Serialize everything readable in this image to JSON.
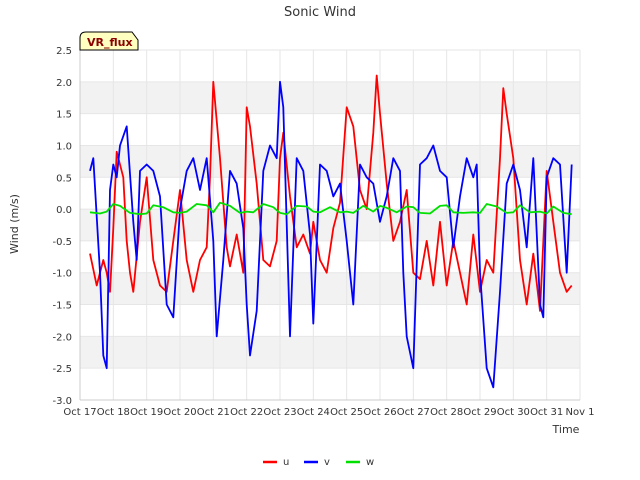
{
  "chart_data": {
    "type": "line",
    "title": "Sonic Wind",
    "badge": "VR_flux",
    "xlabel": "Time",
    "ylabel": "Wind (m/s)",
    "ylim": [
      -3.0,
      2.5
    ],
    "xlim": [
      0,
      15
    ],
    "y_ticks": [
      -3.0,
      -2.5,
      -2.0,
      -1.5,
      -1.0,
      -0.5,
      0.0,
      0.5,
      1.0,
      1.5,
      2.0,
      2.5
    ],
    "y_tick_labels": [
      "-3.0",
      "-2.5",
      "-2.0",
      "-1.5",
      "-1.0",
      "-0.5",
      "0.0",
      "0.5",
      "1.0",
      "1.5",
      "2.0",
      "2.5"
    ],
    "x_ticks": [
      0,
      1,
      2,
      3,
      4,
      5,
      6,
      7,
      8,
      9,
      10,
      11,
      12,
      13,
      14,
      15
    ],
    "x_tick_labels": [
      "Oct 17",
      "Oct 18",
      "Oct 19",
      "Oct 20",
      "Oct 21",
      "Oct 22",
      "Oct 23",
      "Oct 24",
      "Oct 25",
      "Oct 26",
      "Oct 27",
      "Oct 28",
      "Oct 29",
      "Oct 30",
      "Oct 31",
      "Nov 1"
    ],
    "grid": true,
    "legend_position": "bottom-center",
    "series": [
      {
        "name": "u",
        "color": "#ff0000",
        "x": [
          0.3,
          0.5,
          0.7,
          0.8,
          0.9,
          1.0,
          1.1,
          1.3,
          1.4,
          1.5,
          1.6,
          1.8,
          2.0,
          2.2,
          2.4,
          2.6,
          2.8,
          3.0,
          3.2,
          3.4,
          3.6,
          3.8,
          3.9,
          4.0,
          4.2,
          4.4,
          4.5,
          4.7,
          4.9,
          5.0,
          5.1,
          5.3,
          5.5,
          5.7,
          5.9,
          6.0,
          6.1,
          6.3,
          6.5,
          6.7,
          6.9,
          7.0,
          7.2,
          7.4,
          7.6,
          7.8,
          8.0,
          8.2,
          8.4,
          8.6,
          8.8,
          8.9,
          9.0,
          9.2,
          9.4,
          9.6,
          9.8,
          10.0,
          10.2,
          10.4,
          10.6,
          10.8,
          11.0,
          11.2,
          11.4,
          11.6,
          11.8,
          12.0,
          12.2,
          12.4,
          12.6,
          12.7,
          12.8,
          13.0,
          13.2,
          13.4,
          13.6,
          13.8,
          14.0,
          14.2,
          14.4,
          14.6,
          14.75
        ],
        "values": [
          -0.7,
          -1.2,
          -0.8,
          -1.0,
          -1.3,
          -0.3,
          0.9,
          0.5,
          -0.5,
          -1.0,
          -1.3,
          -0.2,
          0.5,
          -0.8,
          -1.2,
          -1.3,
          -0.5,
          0.3,
          -0.8,
          -1.3,
          -0.8,
          -0.6,
          0.5,
          2.0,
          0.8,
          -0.6,
          -0.9,
          -0.4,
          -1.0,
          1.6,
          1.3,
          0.4,
          -0.8,
          -0.9,
          -0.5,
          0.8,
          1.2,
          0.2,
          -0.6,
          -0.4,
          -0.7,
          -0.2,
          -0.8,
          -1.0,
          -0.3,
          0.1,
          1.6,
          1.3,
          0.3,
          0.0,
          1.2,
          2.1,
          1.5,
          0.4,
          -0.5,
          -0.2,
          0.3,
          -1.0,
          -1.1,
          -0.5,
          -1.2,
          -0.2,
          -1.2,
          -0.5,
          -1.0,
          -1.5,
          -0.4,
          -1.3,
          -0.8,
          -1.0,
          0.8,
          1.9,
          1.5,
          0.8,
          -0.8,
          -1.5,
          -0.7,
          -1.6,
          0.6,
          -0.2,
          -1.0,
          -1.3,
          -1.2
        ]
      },
      {
        "name": "v",
        "color": "#0000ff",
        "x": [
          0.3,
          0.4,
          0.6,
          0.7,
          0.8,
          0.9,
          1.0,
          1.1,
          1.2,
          1.4,
          1.6,
          1.7,
          1.8,
          2.0,
          2.2,
          2.4,
          2.6,
          2.8,
          3.0,
          3.2,
          3.4,
          3.6,
          3.8,
          4.0,
          4.1,
          4.3,
          4.5,
          4.7,
          4.9,
          5.0,
          5.1,
          5.3,
          5.5,
          5.7,
          5.9,
          6.0,
          6.1,
          6.3,
          6.5,
          6.7,
          6.9,
          7.0,
          7.2,
          7.4,
          7.6,
          7.8,
          8.0,
          8.2,
          8.4,
          8.6,
          8.8,
          9.0,
          9.2,
          9.4,
          9.6,
          9.7,
          9.8,
          10.0,
          10.2,
          10.4,
          10.6,
          10.8,
          11.0,
          11.2,
          11.4,
          11.6,
          11.8,
          11.9,
          12.0,
          12.2,
          12.4,
          12.6,
          12.8,
          13.0,
          13.2,
          13.4,
          13.6,
          13.8,
          13.9,
          14.0,
          14.2,
          14.4,
          14.6,
          14.75
        ],
        "values": [
          0.6,
          0.8,
          -1.0,
          -2.3,
          -2.5,
          0.3,
          0.7,
          0.5,
          1.0,
          1.3,
          -0.2,
          -0.8,
          0.6,
          0.7,
          0.6,
          0.2,
          -1.5,
          -1.7,
          0.0,
          0.6,
          0.8,
          0.3,
          0.8,
          -0.5,
          -2.0,
          -0.8,
          0.6,
          0.4,
          -0.3,
          -1.5,
          -2.3,
          -1.6,
          0.6,
          1.0,
          0.8,
          2.0,
          1.6,
          -2.0,
          0.8,
          0.6,
          -0.4,
          -1.8,
          0.7,
          0.6,
          0.2,
          0.4,
          -0.5,
          -1.5,
          0.7,
          0.5,
          0.4,
          -0.2,
          0.2,
          0.8,
          0.6,
          -1.0,
          -2.0,
          -2.5,
          0.7,
          0.8,
          1.0,
          0.6,
          0.5,
          -0.6,
          0.2,
          0.8,
          0.5,
          0.7,
          -1.0,
          -2.5,
          -2.8,
          -1.3,
          0.4,
          0.7,
          0.3,
          -0.6,
          0.8,
          -1.5,
          -1.7,
          0.5,
          0.8,
          0.7,
          -1.0,
          0.7
        ]
      },
      {
        "name": "w",
        "color": "#00e000",
        "x": [
          0.3,
          0.6,
          0.8,
          1.0,
          1.2,
          1.5,
          1.8,
          2.0,
          2.2,
          2.5,
          2.8,
          3.0,
          3.2,
          3.5,
          3.8,
          4.0,
          4.2,
          4.5,
          4.8,
          5.0,
          5.2,
          5.5,
          5.8,
          6.0,
          6.2,
          6.5,
          6.8,
          7.0,
          7.2,
          7.5,
          7.8,
          8.0,
          8.2,
          8.5,
          8.8,
          9.0,
          9.2,
          9.5,
          9.8,
          10.0,
          10.2,
          10.5,
          10.8,
          11.0,
          11.2,
          11.5,
          11.8,
          12.0,
          12.2,
          12.5,
          12.8,
          13.0,
          13.2,
          13.5,
          13.8,
          14.0,
          14.2,
          14.5,
          14.75
        ],
        "values": [
          -0.05,
          -0.07,
          -0.04,
          0.08,
          0.05,
          -0.06,
          -0.08,
          -0.07,
          0.06,
          0.03,
          -0.05,
          -0.06,
          -0.04,
          0.08,
          0.06,
          -0.05,
          0.1,
          0.05,
          -0.06,
          -0.04,
          -0.05,
          0.08,
          0.03,
          -0.06,
          -0.08,
          0.05,
          0.04,
          -0.04,
          -0.05,
          0.03,
          -0.05,
          -0.04,
          -0.06,
          0.05,
          -0.04,
          0.05,
          0.02,
          -0.05,
          0.04,
          0.03,
          -0.06,
          -0.07,
          0.05,
          0.06,
          -0.05,
          -0.06,
          -0.05,
          -0.06,
          0.08,
          0.04,
          -0.06,
          -0.05,
          0.06,
          -0.05,
          -0.04,
          -0.07,
          0.04,
          -0.06,
          -0.08
        ]
      }
    ]
  }
}
